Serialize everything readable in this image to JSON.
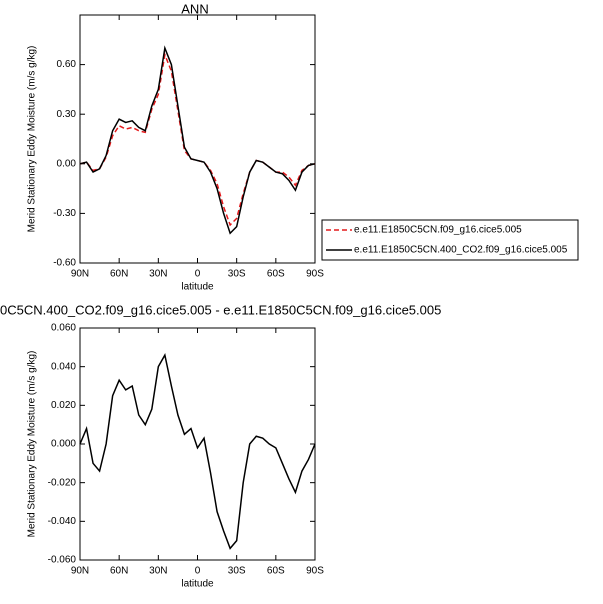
{
  "chart_data": [
    {
      "type": "line",
      "title": "ANN",
      "xlabel": "latitude",
      "ylabel": "Merid Stationary Eddy Moisture (m/s g/kg)",
      "x": [
        90,
        85,
        80,
        75,
        70,
        65,
        60,
        55,
        50,
        45,
        40,
        35,
        30,
        25,
        20,
        15,
        10,
        5,
        0,
        -5,
        -10,
        -15,
        -20,
        -25,
        -30,
        -35,
        -40,
        -45,
        -50,
        -55,
        -60,
        -65,
        -70,
        -75,
        -80,
        -85,
        -90
      ],
      "series": [
        {
          "name": "e.e11.E1850C5CN.f09_g16.cice5.005",
          "color": "#e41a1c",
          "linestyle": "dashed",
          "values": [
            0.0,
            0.01,
            -0.04,
            -0.03,
            0.04,
            0.17,
            0.23,
            0.21,
            0.22,
            0.2,
            0.19,
            0.33,
            0.42,
            0.66,
            0.56,
            0.32,
            0.08,
            0.03,
            0.02,
            0.01,
            -0.04,
            -0.12,
            -0.26,
            -0.37,
            -0.33,
            -0.18,
            -0.05,
            0.02,
            0.01,
            -0.02,
            -0.05,
            -0.05,
            -0.08,
            -0.13,
            -0.04,
            -0.01,
            0.0
          ]
        },
        {
          "name": "e.e11.E1850C5CN.400_CO2.f09_g16.cice5.005",
          "color": "#000000",
          "linestyle": "solid",
          "values": [
            0.0,
            0.01,
            -0.05,
            -0.03,
            0.05,
            0.2,
            0.27,
            0.25,
            0.26,
            0.22,
            0.2,
            0.35,
            0.45,
            0.7,
            0.6,
            0.35,
            0.1,
            0.03,
            0.02,
            0.01,
            -0.05,
            -0.15,
            -0.3,
            -0.42,
            -0.38,
            -0.2,
            -0.05,
            0.02,
            0.01,
            -0.02,
            -0.05,
            -0.06,
            -0.1,
            -0.16,
            -0.05,
            -0.01,
            0.0
          ]
        }
      ],
      "xlim": [
        90,
        -90
      ],
      "xticks": [
        {
          "value": 90,
          "label": "90N"
        },
        {
          "value": 60,
          "label": "60N"
        },
        {
          "value": 30,
          "label": "30N"
        },
        0,
        {
          "value": -30,
          "label": "30S"
        },
        {
          "value": -60,
          "label": "60S"
        },
        {
          "value": -90,
          "label": "90S"
        }
      ],
      "ylim": [
        -0.6,
        0.9
      ],
      "yticks": [
        {
          "value": -0.6,
          "label": "-0.60"
        },
        {
          "value": -0.3,
          "label": "-0.30"
        },
        {
          "value": 0,
          "label": "0.00"
        },
        {
          "value": 0.3,
          "label": "0.30"
        },
        {
          "value": 0.6,
          "label": "0.60"
        }
      ],
      "legend": "right"
    },
    {
      "type": "line",
      "title": "0C5CN.400_CO2.f09_g16.cice5.005 - e.e11.E1850C5CN.f09_g16.cice5.005",
      "xlabel": "latitude",
      "ylabel": "Merid Stationary Eddy Moisture (m/s g/kg)",
      "x": [
        90,
        85,
        80,
        75,
        70,
        65,
        60,
        55,
        50,
        45,
        40,
        35,
        30,
        25,
        20,
        15,
        10,
        5,
        0,
        -5,
        -10,
        -15,
        -20,
        -25,
        -30,
        -35,
        -40,
        -45,
        -50,
        -55,
        -60,
        -65,
        -70,
        -75,
        -80,
        -85,
        -90
      ],
      "series": [
        {
          "color": "#000000",
          "linestyle": "solid",
          "values": [
            0.0,
            0.008,
            -0.01,
            -0.014,
            0.0,
            0.025,
            0.033,
            0.028,
            0.03,
            0.015,
            0.01,
            0.018,
            0.04,
            0.046,
            0.03,
            0.015,
            0.005,
            0.008,
            -0.002,
            0.003,
            -0.015,
            -0.035,
            -0.045,
            -0.054,
            -0.05,
            -0.02,
            0.0,
            0.004,
            0.003,
            0.0,
            -0.002,
            -0.01,
            -0.018,
            -0.025,
            -0.014,
            -0.008,
            0.0
          ]
        }
      ],
      "xlim": [
        90,
        -90
      ],
      "xticks": [
        {
          "value": 90,
          "label": "90N"
        },
        {
          "value": 60,
          "label": "60N"
        },
        {
          "value": 30,
          "label": "30N"
        },
        0,
        {
          "value": -30,
          "label": "30S"
        },
        {
          "value": -60,
          "label": "60S"
        },
        {
          "value": -90,
          "label": "90S"
        }
      ],
      "ylim": [
        -0.06,
        0.06
      ],
      "yticks": [
        {
          "value": -0.06,
          "label": "-0.060"
        },
        {
          "value": -0.04,
          "label": "-0.040"
        },
        {
          "value": -0.02,
          "label": "-0.020"
        },
        {
          "value": 0,
          "label": "0.000"
        },
        {
          "value": 0.02,
          "label": "0.020"
        },
        {
          "value": 0.04,
          "label": "0.040"
        },
        {
          "value": 0.06,
          "label": "0.060"
        }
      ]
    }
  ]
}
